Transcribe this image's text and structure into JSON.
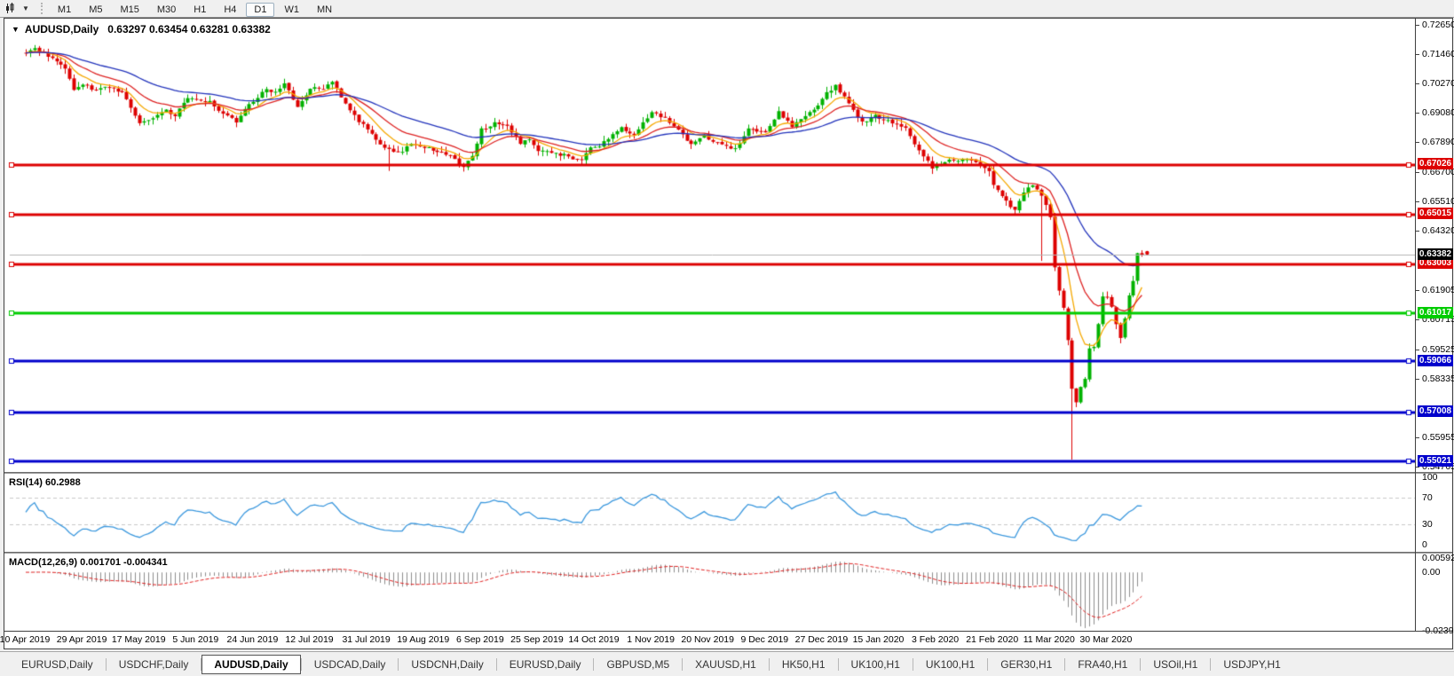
{
  "toolbar": {
    "icon": "chart-pointer-icon",
    "timeframes": [
      "M1",
      "M5",
      "M15",
      "M30",
      "H1",
      "H4",
      "D1",
      "W1",
      "MN"
    ],
    "active_timeframe": "D1"
  },
  "header": {
    "symbol": "AUDUSD,Daily",
    "quotes": "0.63297 0.63454 0.63281 0.63382"
  },
  "chart_data": {
    "type": "candlestick",
    "title": "AUDUSD,Daily",
    "symbol": "AUDUSD",
    "timeframe": "Daily",
    "ohlc_current": {
      "open": "0.63297",
      "high": "0.63454",
      "low": "0.63281",
      "close": "0.63382"
    },
    "y_range": [
      0.5467,
      0.7282
    ],
    "y_ticks": [
      "0.72650",
      "0.71460",
      "0.70270",
      "0.69080",
      "0.67890",
      "0.66700",
      "0.65510",
      "0.64320",
      "0.61905",
      "0.60715",
      "0.59525",
      "0.58335",
      "0.55955",
      "0.54765"
    ],
    "x_dates": [
      "10 Apr 2019",
      "29 Apr 2019",
      "17 May 2019",
      "5 Jun 2019",
      "24 Jun 2019",
      "12 Jul 2019",
      "31 Jul 2019",
      "19 Aug 2019",
      "6 Sep 2019",
      "25 Sep 2019",
      "14 Oct 2019",
      "1 Nov 2019",
      "20 Nov 2019",
      "9 Dec 2019",
      "27 Dec 2019",
      "15 Jan 2020",
      "3 Feb 2020",
      "21 Feb 2020",
      "11 Mar 2020",
      "30 Mar 2020"
    ],
    "days_per_label": 13,
    "close_path": [
      [
        0,
        0.7155
      ],
      [
        2,
        0.7178
      ],
      [
        4,
        0.715
      ],
      [
        7,
        0.712
      ],
      [
        9,
        0.7085
      ],
      [
        11,
        0.701
      ],
      [
        13,
        0.703
      ],
      [
        16,
        0.7
      ],
      [
        19,
        0.7018
      ],
      [
        22,
        0.6995
      ],
      [
        25,
        0.69
      ],
      [
        26,
        0.6865
      ],
      [
        29,
        0.6885
      ],
      [
        32,
        0.6925
      ],
      [
        34,
        0.69
      ],
      [
        37,
        0.6975
      ],
      [
        39,
        0.6965
      ],
      [
        42,
        0.6958
      ],
      [
        45,
        0.6905
      ],
      [
        48,
        0.6878
      ],
      [
        50,
        0.6928
      ],
      [
        52,
        0.6958
      ],
      [
        55,
        0.7008
      ],
      [
        57,
        0.6992
      ],
      [
        59,
        0.7032
      ],
      [
        62,
        0.6935
      ],
      [
        65,
        0.7012
      ],
      [
        68,
        0.7008
      ],
      [
        70,
        0.7038
      ],
      [
        73,
        0.695
      ],
      [
        76,
        0.688
      ],
      [
        78,
        0.6848
      ],
      [
        80,
        0.6802
      ],
      [
        83,
        0.676
      ],
      [
        86,
        0.6758
      ],
      [
        88,
        0.6788
      ],
      [
        91,
        0.6772
      ],
      [
        94,
        0.6756
      ],
      [
        97,
        0.6742
      ],
      [
        100,
        0.669
      ],
      [
        102,
        0.6735
      ],
      [
        104,
        0.6845
      ],
      [
        107,
        0.6868
      ],
      [
        110,
        0.6858
      ],
      [
        113,
        0.6792
      ],
      [
        115,
        0.68
      ],
      [
        117,
        0.6758
      ],
      [
        120,
        0.6752
      ],
      [
        123,
        0.674
      ],
      [
        125,
        0.6728
      ],
      [
        127,
        0.6722
      ],
      [
        129,
        0.6768
      ],
      [
        131,
        0.6778
      ],
      [
        134,
        0.6822
      ],
      [
        136,
        0.685
      ],
      [
        139,
        0.6822
      ],
      [
        141,
        0.687
      ],
      [
        143,
        0.6912
      ],
      [
        146,
        0.6892
      ],
      [
        149,
        0.6845
      ],
      [
        152,
        0.6782
      ],
      [
        155,
        0.6825
      ],
      [
        156,
        0.6802
      ],
      [
        159,
        0.6782
      ],
      [
        162,
        0.6766
      ],
      [
        165,
        0.6845
      ],
      [
        168,
        0.684
      ],
      [
        169,
        0.6832
      ],
      [
        172,
        0.6915
      ],
      [
        175,
        0.6856
      ],
      [
        178,
        0.69
      ],
      [
        181,
        0.6942
      ],
      [
        183,
        0.6992
      ],
      [
        185,
        0.7022
      ],
      [
        188,
        0.6952
      ],
      [
        191,
        0.6872
      ],
      [
        194,
        0.6902
      ],
      [
        195,
        0.6892
      ],
      [
        198,
        0.687
      ],
      [
        201,
        0.6846
      ],
      [
        204,
        0.6762
      ],
      [
        207,
        0.6692
      ],
      [
        209,
        0.6702
      ],
      [
        211,
        0.6726
      ],
      [
        214,
        0.6722
      ],
      [
        217,
        0.6716
      ],
      [
        220,
        0.6672
      ],
      [
        221,
        0.6622
      ],
      [
        224,
        0.6552
      ],
      [
        226,
        0.6516
      ],
      [
        228,
        0.6592
      ],
      [
        230,
        0.6622
      ],
      [
        232,
        0.658
      ],
      [
        233,
        0.654
      ],
      [
        234,
        0.6492
      ],
      [
        235,
        0.6292
      ],
      [
        236,
        0.6192
      ],
      [
        237,
        0.6122
      ],
      [
        238,
        0.5992
      ],
      [
        239,
        0.5792
      ],
      [
        240,
        0.5742
      ],
      [
        241,
        0.5802
      ],
      [
        242,
        0.5832
      ],
      [
        243,
        0.5962
      ],
      [
        244,
        0.596
      ],
      [
        245,
        0.6062
      ],
      [
        246,
        0.6172
      ],
      [
        247,
        0.617
      ],
      [
        248,
        0.6132
      ],
      [
        249,
        0.6062
      ],
      [
        250,
        0.6002
      ],
      [
        251,
        0.6082
      ],
      [
        252,
        0.6172
      ],
      [
        253,
        0.6232
      ],
      [
        254,
        0.634
      ],
      [
        255,
        0.63382
      ]
    ],
    "wick_events": [
      {
        "day": 83,
        "low": 0.6677
      },
      {
        "day": 232,
        "low": 0.6313
      },
      {
        "day": 239,
        "low": 0.551
      }
    ],
    "candle_colors": {
      "bull": "#00b200",
      "bear": "#dd0000"
    },
    "moving_averages": [
      {
        "name": "fast",
        "period": 8,
        "color": "#f5a800"
      },
      {
        "name": "medium",
        "period": 17,
        "color": "#dd2222"
      },
      {
        "name": "slow",
        "period": 40,
        "color": "#2233bb"
      }
    ],
    "horizontal_lines": [
      {
        "label": "0.67026",
        "price": 0.67026,
        "color": "#dd0000",
        "width": 3
      },
      {
        "label": "0.65015",
        "price": 0.65015,
        "color": "#dd0000",
        "width": 3
      },
      {
        "label": "0.63003",
        "price": 0.63003,
        "color": "#dd0000",
        "width": 3
      },
      {
        "label": "0.61017",
        "price": 0.61017,
        "color": "#00cc00",
        "width": 3
      },
      {
        "label": "0.59066",
        "price": 0.59066,
        "color": "#0000cc",
        "width": 3
      },
      {
        "label": "0.57008",
        "price": 0.57008,
        "color": "#0000cc",
        "width": 3
      },
      {
        "label": "0.55021",
        "price": 0.55021,
        "color": "#0000cc",
        "width": 3
      }
    ],
    "current_price": {
      "label": "0.63382",
      "price": 0.63382,
      "badge_color": "#000000",
      "line_color": "#b4b4b4"
    },
    "rsi": {
      "label": "RSI(14) 60.2988",
      "period": 14,
      "current": 60.2988,
      "levels": [
        70,
        30
      ],
      "scale_ticks": [
        "100",
        "70",
        "30",
        "0"
      ],
      "range": [
        0,
        100
      ],
      "line_color": "#3a97dd",
      "level_color": "#c8c8c8"
    },
    "macd": {
      "label": "MACD(12,26,9) 0.001701 -0.004341",
      "fast": 12,
      "slow": 26,
      "signal_period": 9,
      "macd_value": 0.001701,
      "signal_value": -0.004341,
      "scale_ticks": [
        "0.005923",
        "0.00",
        "-0.02394"
      ],
      "range": [
        -0.02394,
        0.005923
      ],
      "hist_color": "#8c8c8c",
      "signal_color": "#e02020"
    }
  },
  "tabs": {
    "items": [
      "EURUSD,Daily",
      "USDCHF,Daily",
      "AUDUSD,Daily",
      "USDCAD,Daily",
      "USDCNH,Daily",
      "EURUSD,Daily",
      "GBPUSD,M5",
      "XAUUSD,H1",
      "HK50,H1",
      "UK100,H1",
      "UK100,H1",
      "GER30,H1",
      "FRA40,H1",
      "USOil,H1",
      "USDJPY,H1"
    ],
    "active_index": 2
  }
}
